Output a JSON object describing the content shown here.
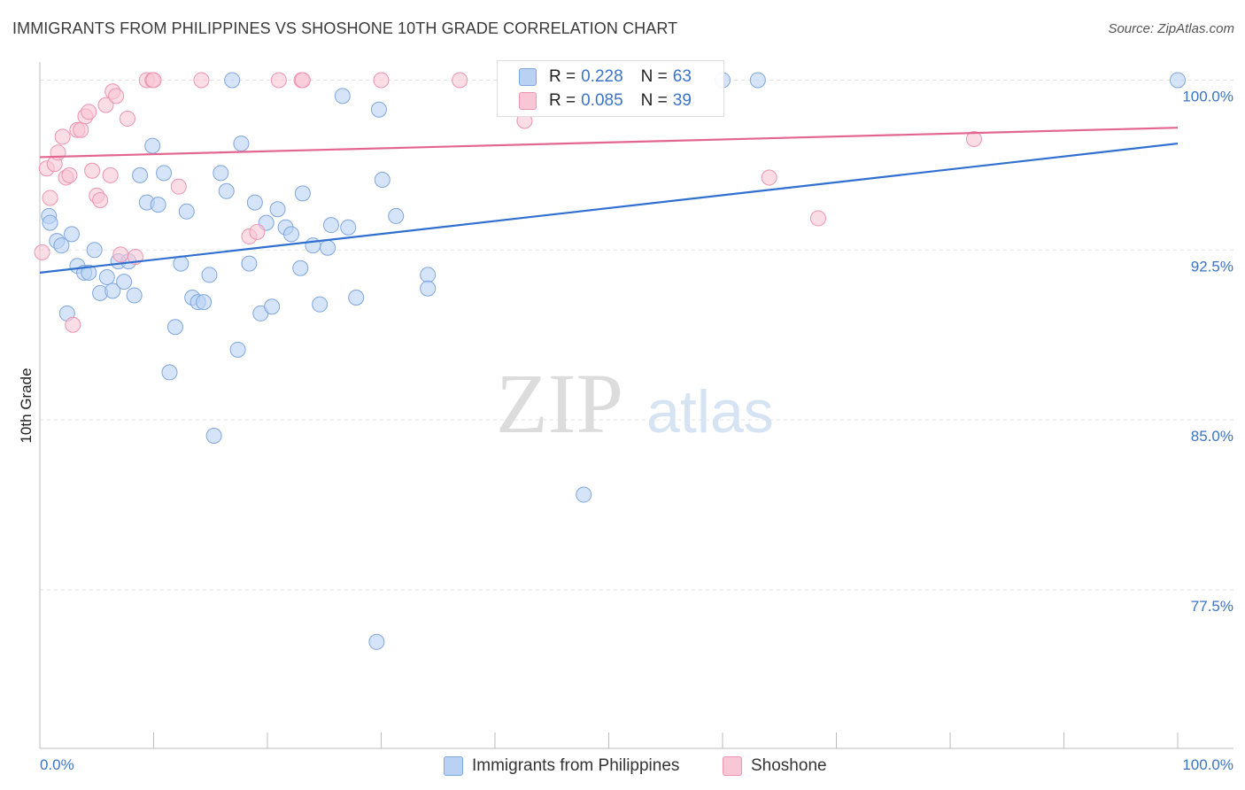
{
  "title": "IMMIGRANTS FROM PHILIPPINES VS SHOSHONE 10TH GRADE CORRELATION CHART",
  "source": "Source: ZipAtlas.com",
  "watermark": {
    "zip": "ZIP",
    "atlas": "atlas"
  },
  "colors": {
    "blue_fill": "#b9d2f3",
    "blue_stroke": "#7fa6de",
    "blue_line": "#2f6fd0",
    "pink_fill": "#f9c6d6",
    "pink_stroke": "#ee93b1",
    "pink_line": "#e36690",
    "axis_text": "#3b74c7",
    "grid": "#e3e3e3"
  },
  "legend": {
    "blue": {
      "r_label": "R =",
      "r_value": "0.228",
      "n_label": "N =",
      "n_value": "63"
    },
    "pink": {
      "r_label": "R =",
      "r_value": "0.085",
      "n_label": "N =",
      "n_value": "39"
    }
  },
  "bottom_legend": {
    "blue": "Immigrants from Philippines",
    "pink": "Shoshone"
  },
  "chart_data": {
    "type": "scatter",
    "title": "IMMIGRANTS FROM PHILIPPINES VS SHOSHONE 10TH GRADE CORRELATION CHART",
    "xlabel": "",
    "ylabel": "10th Grade",
    "xlim": [
      0,
      100
    ],
    "ylim": [
      70.5,
      100.8
    ],
    "x_tick_labels": [
      "0.0%",
      "100.0%"
    ],
    "y_ticks": [
      100.0,
      92.5,
      85.0,
      77.5
    ],
    "y_tick_labels": [
      "100.0%",
      "92.5%",
      "85.0%",
      "77.5%"
    ],
    "grid": true,
    "series": [
      {
        "name": "Immigrants from Philippines",
        "color_key": "blue",
        "trend": {
          "x0": 0,
          "y0": 91.5,
          "x1": 100,
          "y1": 97.2
        },
        "points": [
          [
            0.8,
            94.0
          ],
          [
            0.9,
            93.7
          ],
          [
            1.5,
            92.9
          ],
          [
            1.9,
            92.7
          ],
          [
            2.4,
            89.7
          ],
          [
            2.8,
            93.2
          ],
          [
            3.3,
            91.8
          ],
          [
            3.9,
            91.5
          ],
          [
            4.3,
            91.5
          ],
          [
            4.8,
            92.5
          ],
          [
            5.3,
            90.6
          ],
          [
            5.9,
            91.3
          ],
          [
            6.4,
            90.7
          ],
          [
            6.9,
            92.0
          ],
          [
            7.4,
            91.1
          ],
          [
            7.8,
            92.0
          ],
          [
            8.3,
            90.5
          ],
          [
            8.8,
            95.8
          ],
          [
            9.4,
            94.6
          ],
          [
            9.9,
            97.1
          ],
          [
            10.4,
            94.5
          ],
          [
            10.9,
            95.9
          ],
          [
            11.4,
            87.1
          ],
          [
            11.9,
            89.1
          ],
          [
            12.4,
            91.9
          ],
          [
            12.9,
            94.2
          ],
          [
            13.4,
            90.4
          ],
          [
            13.9,
            90.2
          ],
          [
            14.4,
            90.2
          ],
          [
            14.9,
            91.4
          ],
          [
            15.3,
            84.3
          ],
          [
            15.9,
            95.9
          ],
          [
            16.4,
            95.1
          ],
          [
            16.9,
            100.0
          ],
          [
            17.4,
            88.1
          ],
          [
            17.7,
            97.2
          ],
          [
            18.4,
            91.9
          ],
          [
            18.9,
            94.6
          ],
          [
            19.4,
            89.7
          ],
          [
            19.9,
            93.7
          ],
          [
            20.4,
            90.0
          ],
          [
            20.9,
            94.3
          ],
          [
            21.6,
            93.5
          ],
          [
            22.1,
            93.2
          ],
          [
            22.9,
            91.7
          ],
          [
            23.1,
            95.0
          ],
          [
            24.0,
            92.7
          ],
          [
            24.6,
            90.1
          ],
          [
            25.3,
            92.6
          ],
          [
            25.6,
            93.6
          ],
          [
            26.6,
            99.3
          ],
          [
            27.1,
            93.5
          ],
          [
            27.8,
            90.4
          ],
          [
            29.6,
            75.2
          ],
          [
            29.8,
            98.7
          ],
          [
            30.1,
            95.6
          ],
          [
            31.3,
            94.0
          ],
          [
            34.1,
            91.4
          ],
          [
            34.1,
            90.8
          ],
          [
            47.8,
            81.7
          ],
          [
            60.0,
            100.0
          ],
          [
            63.1,
            100.0
          ],
          [
            100.0,
            100.0
          ]
        ]
      },
      {
        "name": "Shoshone",
        "color_key": "pink",
        "trend": {
          "x0": 0,
          "y0": 96.6,
          "x1": 100,
          "y1": 97.9
        },
        "points": [
          [
            0.2,
            92.4
          ],
          [
            0.6,
            96.1
          ],
          [
            0.9,
            94.8
          ],
          [
            1.3,
            96.3
          ],
          [
            1.6,
            96.8
          ],
          [
            2.0,
            97.5
          ],
          [
            2.3,
            95.7
          ],
          [
            2.6,
            95.8
          ],
          [
            2.9,
            89.2
          ],
          [
            3.3,
            97.8
          ],
          [
            3.6,
            97.8
          ],
          [
            4.0,
            98.4
          ],
          [
            4.3,
            98.6
          ],
          [
            4.6,
            96.0
          ],
          [
            5.0,
            94.9
          ],
          [
            5.3,
            94.7
          ],
          [
            5.8,
            98.9
          ],
          [
            6.2,
            95.8
          ],
          [
            6.4,
            99.5
          ],
          [
            6.7,
            99.3
          ],
          [
            7.1,
            92.3
          ],
          [
            7.7,
            98.3
          ],
          [
            8.4,
            92.2
          ],
          [
            9.4,
            100.0
          ],
          [
            9.9,
            100.0
          ],
          [
            10.0,
            100.0
          ],
          [
            12.2,
            95.3
          ],
          [
            14.2,
            100.0
          ],
          [
            18.4,
            93.1
          ],
          [
            19.1,
            93.3
          ],
          [
            21.0,
            100.0
          ],
          [
            23.0,
            100.0
          ],
          [
            23.1,
            100.0
          ],
          [
            30.0,
            100.0
          ],
          [
            36.9,
            100.0
          ],
          [
            42.6,
            98.2
          ],
          [
            64.1,
            95.7
          ],
          [
            68.4,
            93.9
          ],
          [
            82.1,
            97.4
          ]
        ]
      }
    ]
  }
}
